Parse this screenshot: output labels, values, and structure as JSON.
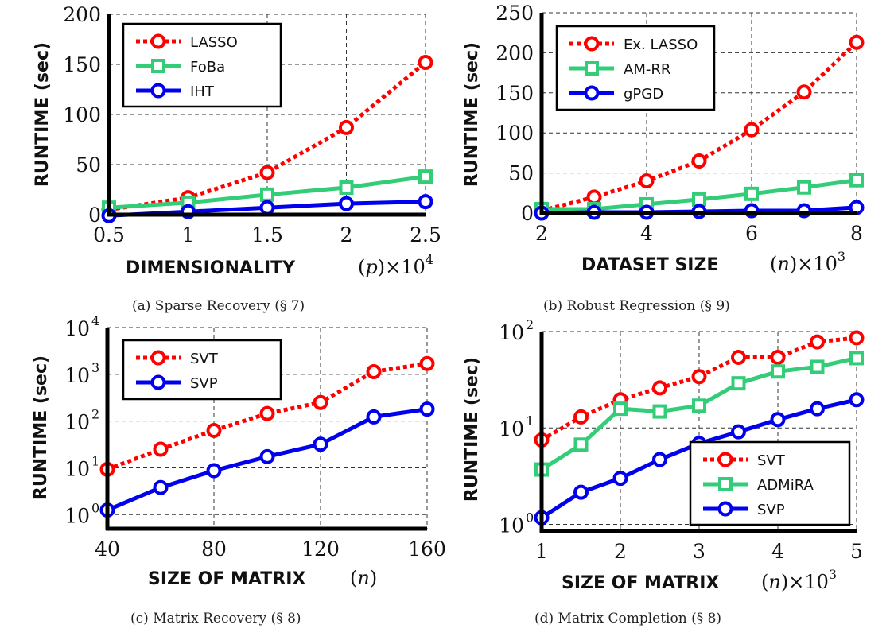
{
  "figure": {
    "colors": {
      "red": "#ff0000",
      "green": "#33cc77",
      "blue": "#0000ee"
    }
  },
  "chart_data": [
    {
      "id": "a",
      "type": "line",
      "caption": "(a) Sparse Recovery (§ 7)",
      "xlabel": "DIMENSIONALITY",
      "xlabel_math": "(p)×10",
      "xlabel_math_var": "p",
      "xlabel_exp": "4",
      "ylabel": "RUNTIME (sec)",
      "yscale": "linear",
      "xlim": [
        0.5,
        2.5
      ],
      "ylim": [
        0,
        200
      ],
      "xticks": [
        0.5,
        1,
        1.5,
        2,
        2.5
      ],
      "xtick_labels": [
        "0.5",
        "1",
        "1.5",
        "2",
        "2.5"
      ],
      "yticks": [
        0,
        50,
        100,
        150,
        200
      ],
      "ytick_labels": [
        "0",
        "50",
        "100",
        "150",
        "200"
      ],
      "grid": true,
      "legend_position": "top-left",
      "x": [
        0.5,
        1,
        1.5,
        2,
        2.5
      ],
      "series": [
        {
          "name": "LASSO",
          "color": "#ff0000",
          "style": "dotted",
          "marker": "circle",
          "values": [
            5,
            17,
            42,
            87,
            152
          ]
        },
        {
          "name": "FoBa",
          "color": "#33cc77",
          "style": "solid",
          "marker": "square",
          "values": [
            7,
            12,
            20,
            27,
            38
          ]
        },
        {
          "name": "IHT",
          "color": "#0000ee",
          "style": "solid",
          "marker": "circle",
          "values": [
            -1,
            3,
            7,
            11,
            13
          ]
        }
      ]
    },
    {
      "id": "b",
      "type": "line",
      "caption": "(b) Robust Regression (§ 9)",
      "xlabel": "DATASET SIZE",
      "xlabel_math": "(n)×10",
      "xlabel_math_var": "n",
      "xlabel_exp": "3",
      "ylabel": "RUNTIME (sec)",
      "yscale": "linear",
      "xlim": [
        2,
        8
      ],
      "ylim": [
        0,
        250
      ],
      "xticks": [
        2,
        4,
        6,
        8
      ],
      "xtick_labels": [
        "2",
        "4",
        "6",
        "8"
      ],
      "yticks": [
        0,
        50,
        100,
        150,
        200,
        250
      ],
      "ytick_labels": [
        "0",
        "50",
        "100",
        "150",
        "200",
        "250"
      ],
      "grid": true,
      "legend_position": "top-left",
      "x": [
        2,
        3,
        4,
        5,
        6,
        7,
        8
      ],
      "series": [
        {
          "name": "Ex. LASSO",
          "color": "#ff0000",
          "style": "dotted",
          "marker": "circle",
          "values": [
            3,
            20,
            40,
            65,
            104,
            151,
            213
          ]
        },
        {
          "name": "AM-RR",
          "color": "#33cc77",
          "style": "solid",
          "marker": "square",
          "values": [
            5,
            5,
            11,
            17,
            24,
            32,
            41
          ]
        },
        {
          "name": "gPGD",
          "color": "#0000ee",
          "style": "solid",
          "marker": "circle",
          "values": [
            0,
            1,
            1,
            2,
            3,
            3,
            7
          ]
        }
      ]
    },
    {
      "id": "c",
      "type": "line",
      "caption": "(c) Matrix Recovery (§ 8)",
      "xlabel": "SIZE OF MATRIX",
      "xlabel_math": "(n)",
      "xlabel_math_var": "n",
      "xlabel_exp": "",
      "ylabel": "RUNTIME (sec)",
      "yscale": "log",
      "xlim": [
        40,
        160
      ],
      "ylim": [
        0.5,
        10000
      ],
      "xticks": [
        40,
        80,
        120,
        160
      ],
      "xtick_labels": [
        "40",
        "80",
        "120",
        "160"
      ],
      "yticks": [
        1,
        10,
        100,
        1000,
        10000
      ],
      "ytick_labels": [
        {
          "base": "10",
          "exp": "0"
        },
        {
          "base": "10",
          "exp": "1"
        },
        {
          "base": "10",
          "exp": "2"
        },
        {
          "base": "10",
          "exp": "3"
        },
        {
          "base": "10",
          "exp": "4"
        }
      ],
      "grid": true,
      "legend_position": "top-left",
      "x": [
        40,
        60,
        80,
        100,
        120,
        140,
        160
      ],
      "series": [
        {
          "name": "SVT",
          "color": "#ff0000",
          "style": "dotted",
          "marker": "circle",
          "values": [
            9.3,
            25,
            63,
            145,
            250,
            1140,
            1700
          ]
        },
        {
          "name": "SVP",
          "color": "#0000ee",
          "style": "solid",
          "marker": "circle",
          "values": [
            1.25,
            3.8,
            8.7,
            17.4,
            32,
            123,
            180
          ]
        }
      ]
    },
    {
      "id": "d",
      "type": "line",
      "caption": "(d) Matrix Completion (§ 8)",
      "xlabel": "SIZE OF MATRIX",
      "xlabel_math": "(n)×10",
      "xlabel_math_var": "n",
      "xlabel_exp": "3",
      "ylabel": "RUNTIME (sec)",
      "yscale": "log",
      "xlim": [
        1,
        5
      ],
      "ylim": [
        0.85,
        100
      ],
      "xticks": [
        1,
        2,
        3,
        4,
        5
      ],
      "xtick_labels": [
        "1",
        "2",
        "3",
        "4",
        "5"
      ],
      "yticks": [
        1,
        10,
        100
      ],
      "ytick_labels": [
        {
          "base": "10",
          "exp": "0"
        },
        {
          "base": "10",
          "exp": "1"
        },
        {
          "base": "10",
          "exp": "2"
        }
      ],
      "grid": true,
      "legend_position": "bottom-right",
      "x": [
        1,
        1.5,
        2,
        2.5,
        3,
        3.5,
        4,
        4.5,
        5
      ],
      "series": [
        {
          "name": "SVT",
          "color": "#ff0000",
          "style": "dotted",
          "marker": "circle",
          "values": [
            7.5,
            13,
            19.6,
            26,
            34,
            54,
            54,
            78,
            86
          ]
        },
        {
          "name": "ADMiRA",
          "color": "#33cc77",
          "style": "solid",
          "marker": "square",
          "values": [
            3.7,
            6.7,
            15.8,
            14.8,
            17,
            29,
            38.5,
            43,
            53
          ]
        },
        {
          "name": "SVP",
          "color": "#0000ee",
          "style": "solid",
          "marker": "circle",
          "values": [
            1.17,
            2.15,
            3.0,
            4.7,
            6.9,
            9.1,
            12.2,
            15.8,
            19.6
          ]
        }
      ]
    }
  ]
}
